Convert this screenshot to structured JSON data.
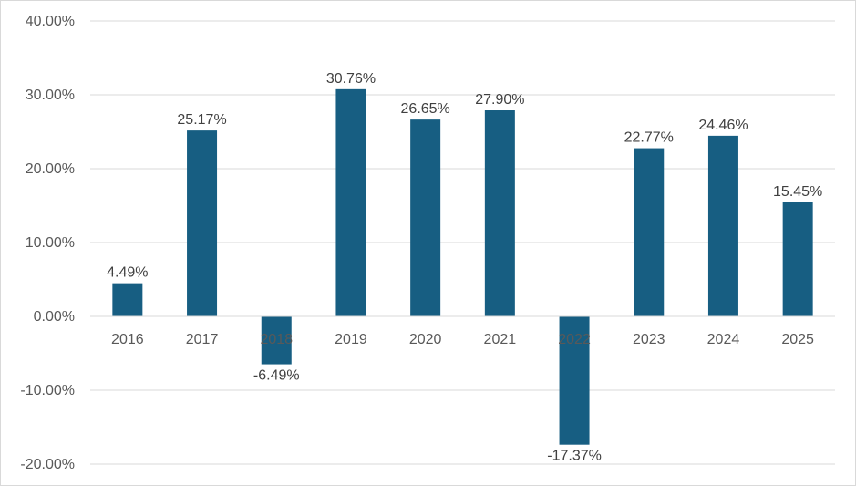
{
  "chart_data": {
    "type": "bar",
    "categories": [
      "2016",
      "2017",
      "2018",
      "2019",
      "2020",
      "2021",
      "2022",
      "2023",
      "2024",
      "2025"
    ],
    "values": [
      4.49,
      25.17,
      -6.49,
      30.76,
      26.65,
      27.9,
      -17.37,
      22.77,
      24.46,
      15.45
    ],
    "data_labels": [
      "4.49%",
      "25.17%",
      "-6.49%",
      "30.76%",
      "26.65%",
      "27.90%",
      "-17.37%",
      "22.77%",
      "24.46%",
      "15.45%"
    ],
    "y_ticks": [
      40,
      30,
      20,
      10,
      0,
      -10,
      -20
    ],
    "y_tick_labels": [
      "40.00%",
      "30.00%",
      "20.00%",
      "10.00%",
      "0.00%",
      "-10.00%",
      "-20.00%"
    ],
    "ylim": [
      -20,
      40
    ],
    "bar_color": "#175e82",
    "grid": true,
    "title": "",
    "xlabel": "",
    "ylabel": ""
  }
}
